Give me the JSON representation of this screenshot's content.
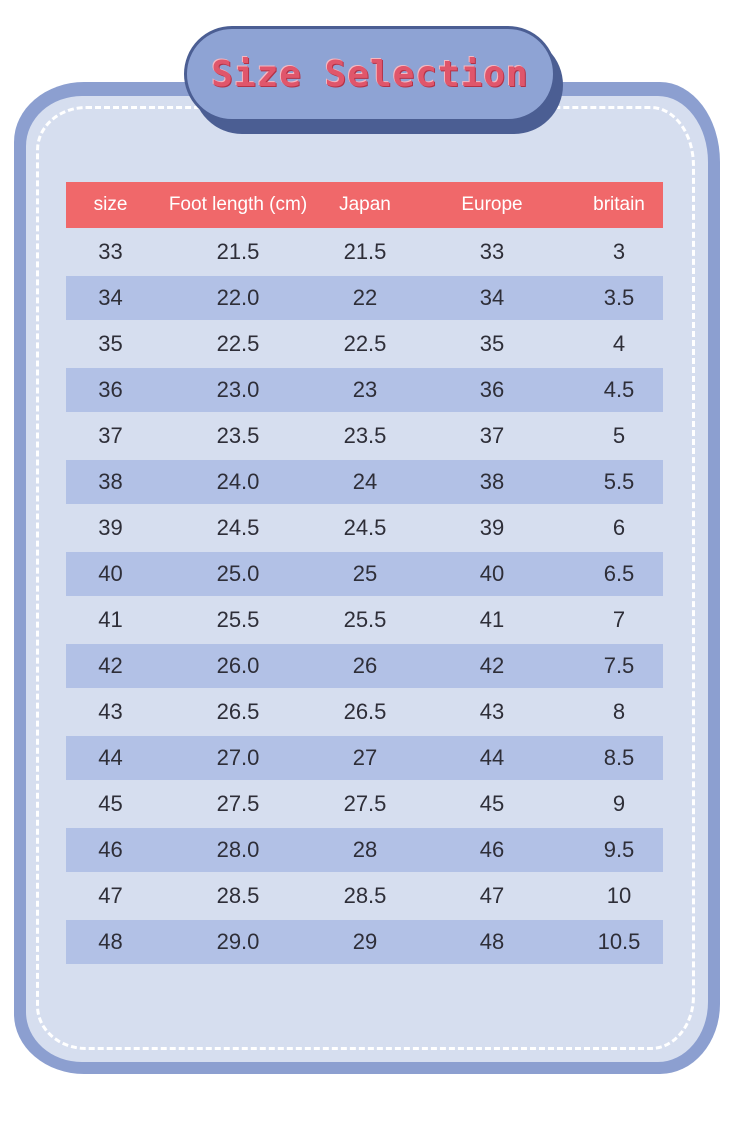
{
  "title": "Size Selection",
  "colors": {
    "header_background": "#f0686a",
    "shaded_row": "#b2c1e6",
    "card": "#d6deef",
    "frame": "#8c9fd0",
    "title_text": "#e0566b"
  },
  "table": {
    "headers": [
      "size",
      "Foot length (cm)",
      "Japan",
      "Europe",
      "britain"
    ],
    "rows": [
      [
        "33",
        "21.5",
        "21.5",
        "33",
        "3"
      ],
      [
        "34",
        "22.0",
        "22",
        "34",
        "3.5"
      ],
      [
        "35",
        "22.5",
        "22.5",
        "35",
        "4"
      ],
      [
        "36",
        "23.0",
        "23",
        "36",
        "4.5"
      ],
      [
        "37",
        "23.5",
        "23.5",
        "37",
        "5"
      ],
      [
        "38",
        "24.0",
        "24",
        "38",
        "5.5"
      ],
      [
        "39",
        "24.5",
        "24.5",
        "39",
        "6"
      ],
      [
        "40",
        "25.0",
        "25",
        "40",
        "6.5"
      ],
      [
        "41",
        "25.5",
        "25.5",
        "41",
        "7"
      ],
      [
        "42",
        "26.0",
        "26",
        "42",
        "7.5"
      ],
      [
        "43",
        "26.5",
        "26.5",
        "43",
        "8"
      ],
      [
        "44",
        "27.0",
        "27",
        "44",
        "8.5"
      ],
      [
        "45",
        "27.5",
        "27.5",
        "45",
        "9"
      ],
      [
        "46",
        "28.0",
        "28",
        "46",
        "9.5"
      ],
      [
        "47",
        "28.5",
        "28.5",
        "47",
        "10"
      ],
      [
        "48",
        "29.0",
        "29",
        "48",
        "10.5"
      ]
    ]
  }
}
